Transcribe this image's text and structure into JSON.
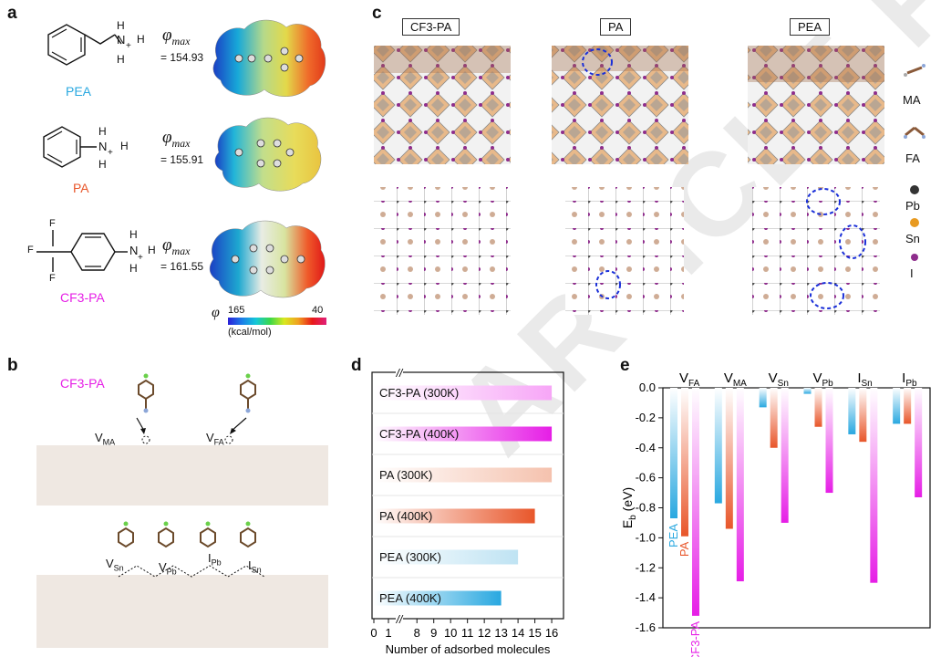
{
  "panels": {
    "a": "a",
    "b": "b",
    "c": "c",
    "d": "d",
    "e": "e"
  },
  "colors": {
    "pea": "#29a8e0",
    "pa": "#e8562a",
    "cf3pa": "#e61ee6"
  },
  "panel_a": {
    "molecules": [
      {
        "name": "PEA",
        "phi_symbol": "φ",
        "phi_sub": "max",
        "phi_value": "= 154.93"
      },
      {
        "name": "PA",
        "phi_symbol": "φ",
        "phi_sub": "max",
        "phi_value": "= 155.91"
      },
      {
        "name": "CF3-PA",
        "phi_symbol": "φ",
        "phi_sub": "max",
        "phi_value": "= 161.55"
      }
    ],
    "atom_H": "H",
    "atom_N": "N",
    "atom_F": "F",
    "charge": "+",
    "colorbar": {
      "symbol": "φ",
      "min": "165",
      "max": "40",
      "unit": "(kcal/mol)"
    }
  },
  "panel_b": {
    "molecule_label": "CF3-PA",
    "vacancies_top": [
      "V",
      "V"
    ],
    "vacancies_top_sub": [
      "MA",
      "FA"
    ],
    "vacancies_bottom": [
      "V",
      "V",
      "I",
      "I"
    ],
    "vacancies_bottom_sub": [
      "Sn",
      "Pb",
      "Pb",
      "Sn"
    ]
  },
  "panel_c": {
    "columns": [
      "CF3-PA",
      "PA",
      "PEA"
    ],
    "legend": [
      "MA",
      "FA",
      "Pb",
      "Sn",
      "I"
    ]
  },
  "chart_data": [
    {
      "type": "bar",
      "orientation": "horizontal",
      "title": "",
      "xlabel": "Number of adsorbed molecules",
      "ylabel": "",
      "categories": [
        "CF3-PA (300K)",
        "CF3-PA (400K)",
        "PA (300K)",
        "PA (400K)",
        "PEA (300K)",
        "PEA (400K)"
      ],
      "values": [
        16,
        16,
        16,
        15,
        14,
        13
      ],
      "bar_colors": [
        "#f7a6f7",
        "#e61ee6",
        "#f5c2ae",
        "#e8562a",
        "#bfe3f3",
        "#29a8e0"
      ],
      "xticks": [
        "0",
        "1",
        "8",
        "9",
        "10",
        "11",
        "12",
        "13",
        "14",
        "15",
        "16"
      ],
      "axis_break": "//",
      "xlim": [
        7.5,
        16.7
      ]
    },
    {
      "type": "bar",
      "title": "",
      "xlabel": "",
      "ylabel": "E",
      "ylabel_sub": "b",
      "ylabel_unit": " (eV)",
      "categories": [
        "V_FA",
        "V_MA",
        "V_Sn",
        "V_Pb",
        "I_Sn",
        "I_Pb"
      ],
      "category_main": [
        "V",
        "V",
        "V",
        "V",
        "I",
        "I"
      ],
      "category_sub": [
        "FA",
        "MA",
        "Sn",
        "Pb",
        "Sn",
        "Pb"
      ],
      "series": [
        {
          "name": "PEA",
          "values": [
            -0.87,
            -0.77,
            -0.13,
            -0.04,
            -0.31,
            -0.24
          ],
          "color": "#29a8e0"
        },
        {
          "name": "PA",
          "values": [
            -0.99,
            -0.94,
            -0.4,
            -0.26,
            -0.36,
            -0.24
          ],
          "color": "#e8562a"
        },
        {
          "name": "CF3-PA",
          "values": [
            -1.52,
            -1.29,
            -0.9,
            -0.7,
            -1.3,
            -0.73
          ],
          "color": "#e61ee6"
        }
      ],
      "yticks": [
        "0.0",
        "-0.2",
        "-0.4",
        "-0.6",
        "-0.8",
        "-1.0",
        "-1.2",
        "-1.4",
        "-1.6"
      ],
      "ylim": [
        -1.6,
        0
      ]
    }
  ],
  "watermark": "ARTICLE PREVIEW"
}
